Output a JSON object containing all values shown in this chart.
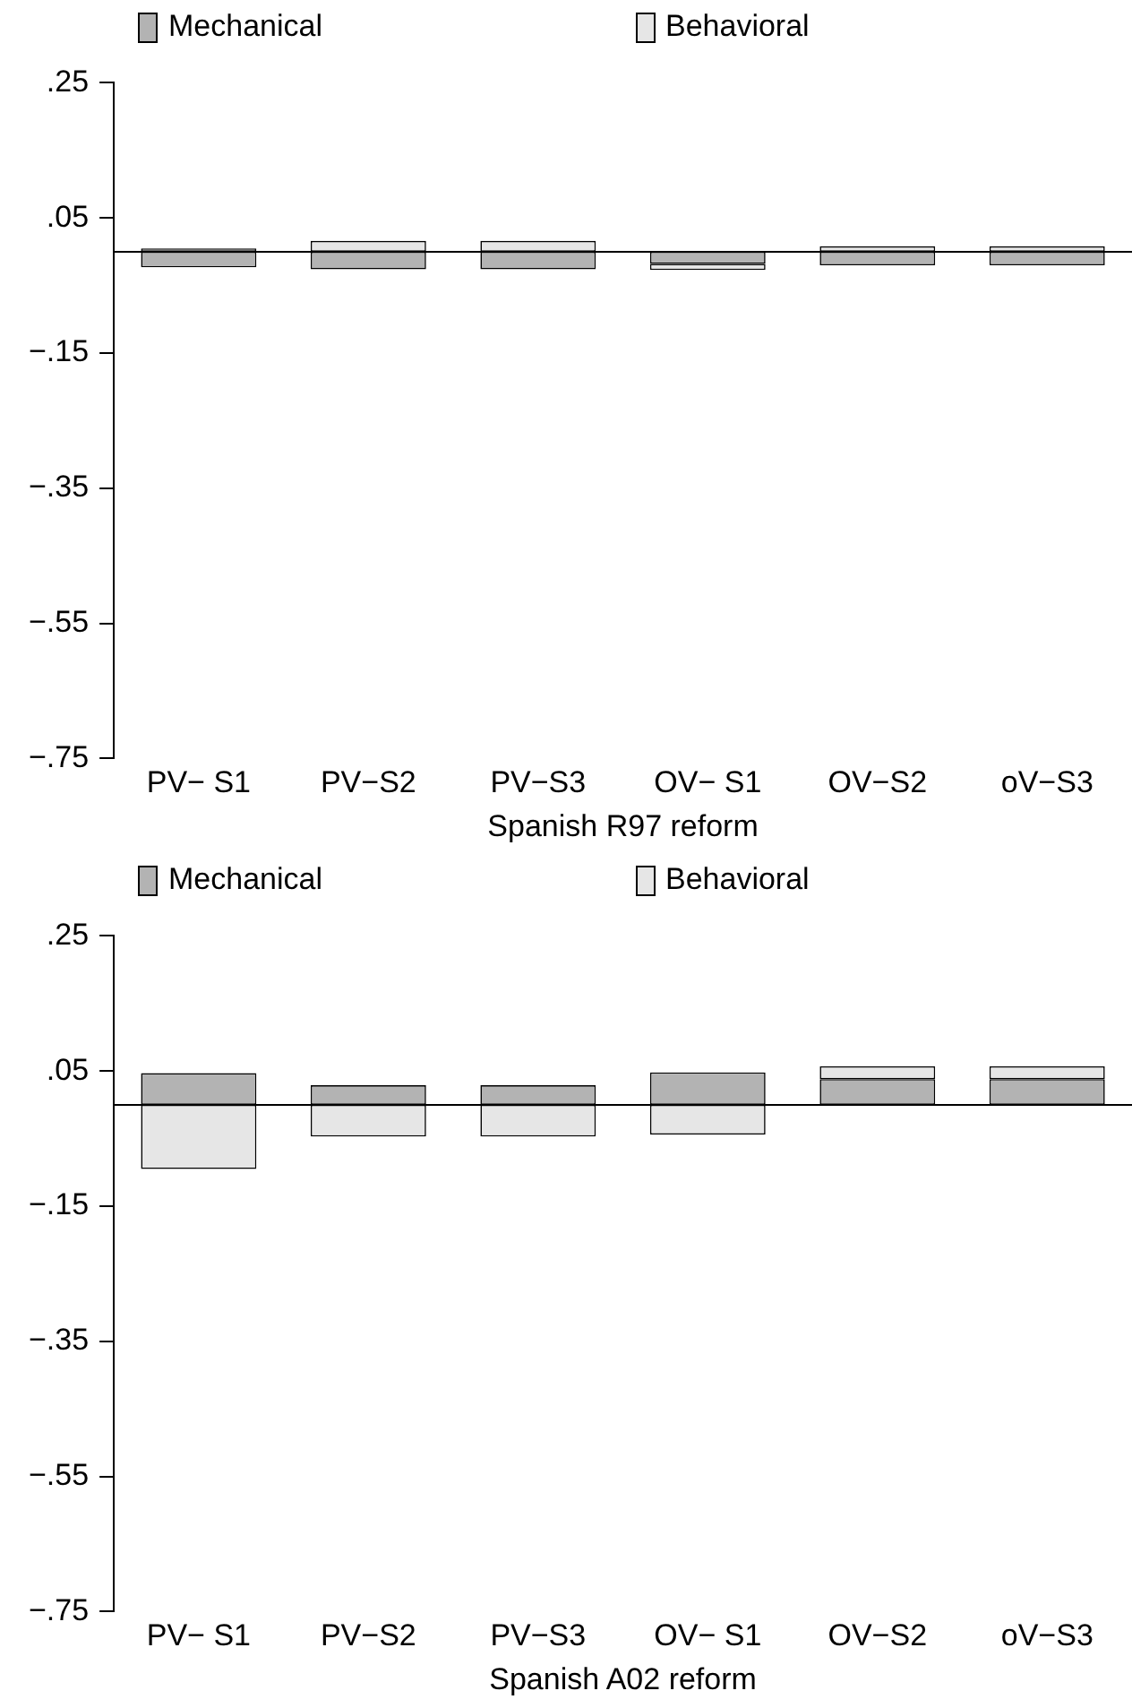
{
  "chart_data": [
    {
      "type": "bar",
      "xlabel": "Spanish R97 reform",
      "categories": [
        "PV− S1",
        "PV−S2",
        "PV−S3",
        "OV− S1",
        "OV−S2",
        "oV−S3"
      ],
      "stacked": true,
      "series": [
        {
          "name": "Mechanical",
          "color": "#b3b3b3",
          "values": [
            -0.023,
            -0.026,
            -0.026,
            -0.018,
            -0.02,
            -0.02
          ]
        },
        {
          "name": "Behavioral",
          "color": "#e6e6e6",
          "values": [
            0.005,
            0.016,
            0.016,
            -0.009,
            0.008,
            0.008
          ]
        }
      ],
      "ylim": [
        -0.75,
        0.25
      ],
      "yticks": [
        {
          "value": 0.25,
          "label": ".25"
        },
        {
          "value": 0.05,
          "label": ".05"
        },
        {
          "value": -0.15,
          "label": "−.15"
        },
        {
          "value": -0.35,
          "label": "−.35"
        },
        {
          "value": -0.55,
          "label": "−.55"
        },
        {
          "value": -0.75,
          "label": "−.75"
        }
      ],
      "ref_lines": [
        {
          "axis": "y",
          "value": 0,
          "color": "#000000"
        }
      ],
      "grid": false,
      "legend": "top"
    },
    {
      "type": "bar",
      "xlabel": "Spanish A02 reform",
      "categories": [
        "PV− S1",
        "PV−S2",
        "PV−S3",
        "OV− S1",
        "OV−S2",
        "oV−S3"
      ],
      "stacked": true,
      "series": [
        {
          "name": "Mechanical",
          "color": "#b3b3b3",
          "values": [
            0.047,
            0.029,
            0.029,
            0.048,
            0.038,
            0.038
          ]
        },
        {
          "name": "Behavioral",
          "color": "#e6e6e6",
          "values": [
            -0.095,
            -0.047,
            -0.047,
            -0.044,
            0.019,
            0.019
          ]
        }
      ],
      "ylim": [
        -0.75,
        0.25
      ],
      "yticks": [
        {
          "value": 0.25,
          "label": ".25"
        },
        {
          "value": 0.05,
          "label": ".05"
        },
        {
          "value": -0.15,
          "label": "−.15"
        },
        {
          "value": -0.35,
          "label": "−.35"
        },
        {
          "value": -0.55,
          "label": "−.55"
        },
        {
          "value": -0.75,
          "label": "−.75"
        }
      ],
      "ref_lines": [
        {
          "axis": "y",
          "value": 0,
          "color": "#000000"
        }
      ],
      "grid": false,
      "legend": "top"
    }
  ]
}
